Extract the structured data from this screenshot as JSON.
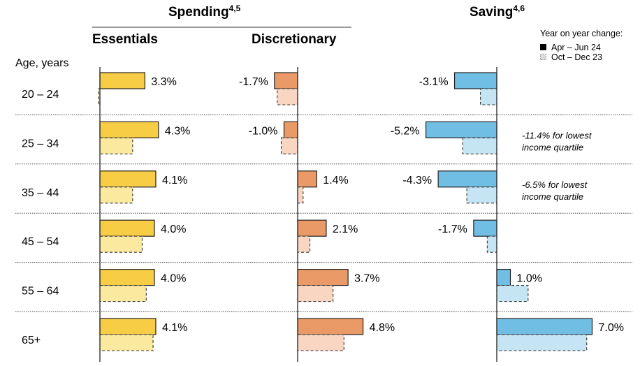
{
  "header": {
    "spending_title": "Spending",
    "spending_sup": "4,5",
    "saving_title": "Saving",
    "saving_sup": "4,6",
    "essentials_label": "Essentials",
    "discretionary_label": "Discretionary",
    "age_axis_label": "Age, years"
  },
  "legend": {
    "title": "Year on year change:",
    "items": [
      {
        "label": "Apr – Jun 24",
        "style": "solid"
      },
      {
        "label": "Oct – Dec 23",
        "style": "dashed"
      }
    ]
  },
  "colors": {
    "essentials_current": "#F7CD46",
    "essentials_prior": "#FBE9A0",
    "discretionary_current": "#E99A66",
    "discretionary_prior": "#F8D6C2",
    "saving_current": "#71BEE4",
    "saving_prior": "#C5E5F4",
    "outline": "#222222"
  },
  "chart_data": {
    "type": "bar",
    "orientation": "horizontal",
    "title": "Year on year change in spending and saving by age",
    "ylabel": "Age, years",
    "categories": [
      "20 – 24",
      "25 – 34",
      "35 – 44",
      "45 – 54",
      "55 – 64",
      "65+"
    ],
    "panels": [
      {
        "name": "Essentials",
        "group": "Spending",
        "series": [
          {
            "name": "Apr – Jun 24",
            "values": [
              3.3,
              4.3,
              4.1,
              4.0,
              4.0,
              4.1
            ],
            "labels": [
              "3.3%",
              "4.3%",
              "4.1%",
              "4.0%",
              "4.0%",
              "4.1%"
            ]
          },
          {
            "name": "Oct – Dec 23",
            "values": [
              -0.1,
              2.4,
              2.4,
              3.1,
              3.4,
              3.9
            ]
          }
        ]
      },
      {
        "name": "Discretionary",
        "group": "Spending",
        "series": [
          {
            "name": "Apr – Jun 24",
            "values": [
              -1.7,
              -1.0,
              1.4,
              2.1,
              3.7,
              4.8
            ],
            "labels": [
              "-1.7%",
              "-1.0%",
              "1.4%",
              "2.1%",
              "3.7%",
              "4.8%"
            ]
          },
          {
            "name": "Oct – Dec 23",
            "values": [
              -1.5,
              -1.2,
              0.4,
              0.9,
              2.6,
              3.4
            ]
          }
        ]
      },
      {
        "name": "Saving",
        "group": "Saving",
        "series": [
          {
            "name": "Apr – Jun 24",
            "values": [
              -3.1,
              -5.2,
              -4.3,
              -1.7,
              1.0,
              7.0
            ],
            "labels": [
              "-3.1%",
              "-5.2%",
              "-4.3%",
              "-1.7%",
              "1.0%",
              "7.0%"
            ]
          },
          {
            "name": "Oct – Dec 23",
            "values": [
              -1.2,
              -2.5,
              -2.2,
              -0.7,
              2.3,
              6.6
            ]
          }
        ]
      }
    ],
    "annotations": [
      {
        "category": "25 – 34",
        "panel": "Saving",
        "lines": [
          "-11.4% for lowest",
          "income quartile"
        ]
      },
      {
        "category": "35 – 44",
        "panel": "Saving",
        "lines": [
          "-6.5% for lowest",
          "income quartile"
        ]
      }
    ],
    "legend_position": "top-right",
    "grid": "dotted row separators"
  }
}
